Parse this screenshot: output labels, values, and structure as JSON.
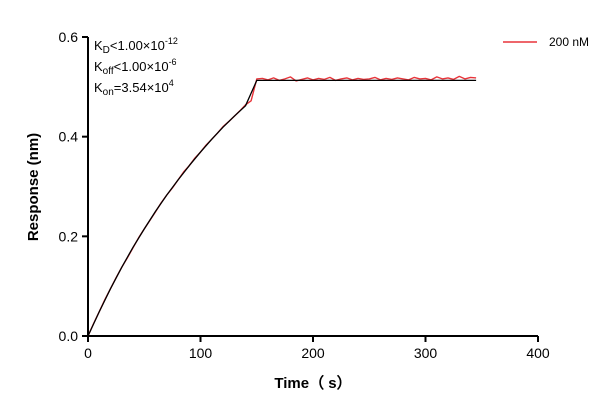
{
  "chart_data": {
    "type": "line",
    "title": "",
    "xlabel": "Time（ s）",
    "ylabel": "Response (nm)",
    "xlim": [
      0,
      400
    ],
    "ylim": [
      0,
      0.6
    ],
    "x_ticks": [
      "0",
      "100",
      "200",
      "300",
      "400"
    ],
    "y_ticks": [
      "0.0",
      "0.2",
      "0.4",
      "0.6"
    ],
    "x_tick_values": [
      0,
      100,
      200,
      300,
      400
    ],
    "y_tick_values": [
      0.0,
      0.2,
      0.4,
      0.6
    ],
    "grid": false,
    "legend_position": "top-right",
    "annotations": {
      "kd": {
        "base": "K",
        "sub": "D",
        "rel": "<",
        "mant": "1.00×10",
        "exp": "-12"
      },
      "koff": {
        "base": "K",
        "sub": "off",
        "rel": "<",
        "mant": "1.00×10",
        "exp": "-6"
      },
      "kon": {
        "base": "K",
        "sub": "on",
        "rel": "=",
        "mant": "3.54×10",
        "exp": "4"
      }
    },
    "series": [
      {
        "name": "200 nM",
        "color": "#e8343a",
        "role": "measured",
        "x": [
          0,
          5,
          10,
          15,
          20,
          25,
          30,
          35,
          40,
          45,
          50,
          55,
          60,
          65,
          70,
          75,
          80,
          85,
          90,
          95,
          100,
          105,
          110,
          115,
          120,
          125,
          130,
          135,
          140,
          145,
          150,
          155,
          160,
          165,
          170,
          175,
          180,
          185,
          190,
          195,
          200,
          205,
          210,
          215,
          220,
          225,
          230,
          235,
          240,
          245,
          250,
          255,
          260,
          265,
          270,
          275,
          280,
          285,
          290,
          295,
          300,
          305,
          310,
          315,
          320,
          325,
          330,
          335,
          340,
          345
        ],
        "y": [
          0.0,
          0.025,
          0.049,
          0.073,
          0.095,
          0.117,
          0.138,
          0.157,
          0.177,
          0.197,
          0.215,
          0.232,
          0.249,
          0.267,
          0.283,
          0.297,
          0.313,
          0.329,
          0.342,
          0.357,
          0.369,
          0.383,
          0.395,
          0.407,
          0.42,
          0.43,
          0.441,
          0.452,
          0.464,
          0.472,
          0.516,
          0.517,
          0.514,
          0.518,
          0.513,
          0.516,
          0.52,
          0.512,
          0.515,
          0.518,
          0.514,
          0.517,
          0.515,
          0.519,
          0.513,
          0.516,
          0.518,
          0.514,
          0.517,
          0.515,
          0.516,
          0.519,
          0.514,
          0.517,
          0.515,
          0.518,
          0.516,
          0.514,
          0.519,
          0.516,
          0.517,
          0.514,
          0.52,
          0.516,
          0.518,
          0.515,
          0.521,
          0.516,
          0.519,
          0.518
        ]
      },
      {
        "color": "#000000",
        "role": "fit",
        "x": [
          0,
          10,
          20,
          30,
          40,
          50,
          60,
          70,
          80,
          90,
          100,
          110,
          120,
          130,
          140,
          150,
          345
        ],
        "y": [
          0.0,
          0.049,
          0.095,
          0.138,
          0.178,
          0.215,
          0.25,
          0.283,
          0.313,
          0.342,
          0.369,
          0.395,
          0.419,
          0.441,
          0.462,
          0.513,
          0.513
        ]
      }
    ]
  }
}
